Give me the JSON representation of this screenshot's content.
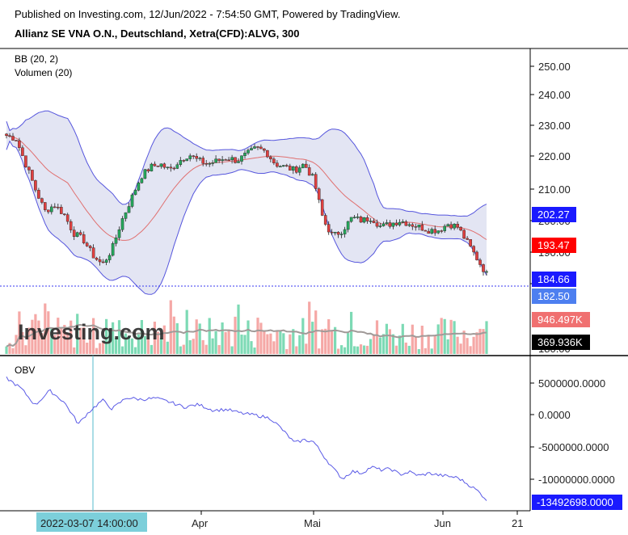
{
  "header": {
    "published": "Published on Investing.com, 12/Jun/2022 - 7:54:50 GMT, Powered by TradingView.",
    "title": "Allianz SE VNA O.N., Deutschland, Xetra(CFD):ALVG, 300"
  },
  "indicators": {
    "bb": "BB (20, 2)",
    "volume": "Volumen (20)",
    "obv": "OBV"
  },
  "watermark": "Investing.com",
  "colors": {
    "up": "#26a65b",
    "down": "#e04040",
    "band_fill": "#e3e5f3",
    "band_line": "#5555dd",
    "basis": "#e07070",
    "obv_line": "#5a5ae6",
    "vol_up": "#7ddab5",
    "vol_down": "#f5a8a6",
    "vol_ma": "#a09a98",
    "badge_blue": "#1a1aff",
    "badge_red": "#ff0000",
    "badge_lightblue": "#4d7ff0",
    "badge_salmon": "#f07070",
    "badge_black": "#000000",
    "crosshair": "#55bbcc",
    "date_badge": "#7ccfda"
  },
  "price_axis": {
    "ticks": [
      "250.00",
      "240.00",
      "230.00",
      "220.00",
      "210.00",
      "200.00",
      "190.00",
      "180.00"
    ]
  },
  "price_badges": {
    "bb_upper": "202.27",
    "bb_basis": "193.47",
    "bb_lower": "184.66",
    "last_price": "182.50"
  },
  "volume_badges": {
    "volume": "946.497K",
    "volume_ma": "369.936K"
  },
  "obv_axis": {
    "ticks": [
      "5000000.0000",
      "0.0000",
      "-5000000.0000",
      "-10000000.0000"
    ],
    "badge": "-13492698.0000"
  },
  "time_axis": {
    "labels": [
      "Apr",
      "Mai",
      "Jun",
      "21"
    ],
    "crosshair_date": "2022-03-07 14:00:00"
  },
  "chart_data": {
    "type": "candlestick",
    "ylim": [
      180,
      252
    ],
    "series": [
      {
        "name": "BB (20, 2)",
        "kind": "bollinger",
        "last_upper": 202.27,
        "last_basis": 193.47,
        "last_lower": 184.66
      },
      {
        "name": "Volumen (20)",
        "kind": "volume",
        "last": 946497,
        "ma_last": 369936
      },
      {
        "name": "OBV",
        "kind": "line",
        "last": -13492698
      }
    ],
    "price_path": [
      [
        0.0,
        227
      ],
      [
        0.02,
        226
      ],
      [
        0.04,
        218
      ],
      [
        0.06,
        210
      ],
      [
        0.08,
        203
      ],
      [
        0.1,
        205
      ],
      [
        0.12,
        202
      ],
      [
        0.14,
        196
      ],
      [
        0.16,
        194
      ],
      [
        0.18,
        189
      ],
      [
        0.2,
        186
      ],
      [
        0.22,
        191
      ],
      [
        0.24,
        200
      ],
      [
        0.26,
        207
      ],
      [
        0.28,
        214
      ],
      [
        0.3,
        217
      ],
      [
        0.32,
        218
      ],
      [
        0.34,
        216
      ],
      [
        0.36,
        219
      ],
      [
        0.38,
        221
      ],
      [
        0.4,
        219
      ],
      [
        0.42,
        218
      ],
      [
        0.44,
        219
      ],
      [
        0.46,
        220
      ],
      [
        0.48,
        219
      ],
      [
        0.5,
        221
      ],
      [
        0.52,
        223
      ],
      [
        0.54,
        222
      ],
      [
        0.56,
        218
      ],
      [
        0.58,
        217
      ],
      [
        0.6,
        216
      ],
      [
        0.62,
        218
      ],
      [
        0.64,
        213
      ],
      [
        0.66,
        200
      ],
      [
        0.68,
        195
      ],
      [
        0.7,
        197
      ],
      [
        0.72,
        201
      ],
      [
        0.74,
        200
      ],
      [
        0.76,
        201
      ],
      [
        0.78,
        198
      ],
      [
        0.8,
        199
      ],
      [
        0.82,
        200
      ],
      [
        0.84,
        199
      ],
      [
        0.86,
        198
      ],
      [
        0.88,
        197
      ],
      [
        0.9,
        197
      ],
      [
        0.92,
        199
      ],
      [
        0.94,
        198
      ],
      [
        0.96,
        193
      ],
      [
        0.98,
        188
      ],
      [
        1.0,
        183
      ]
    ],
    "obv_path": [
      [
        0.0,
        5800000
      ],
      [
        0.03,
        4200000
      ],
      [
        0.06,
        1500000
      ],
      [
        0.09,
        3800000
      ],
      [
        0.12,
        2000000
      ],
      [
        0.15,
        -1500000
      ],
      [
        0.17,
        300000
      ],
      [
        0.2,
        2300000
      ],
      [
        0.22,
        900000
      ],
      [
        0.25,
        2700000
      ],
      [
        0.28,
        2400000
      ],
      [
        0.31,
        2600000
      ],
      [
        0.34,
        2000000
      ],
      [
        0.37,
        1200000
      ],
      [
        0.4,
        1600000
      ],
      [
        0.43,
        700000
      ],
      [
        0.46,
        800000
      ],
      [
        0.49,
        200000
      ],
      [
        0.52,
        -100000
      ],
      [
        0.55,
        -600000
      ],
      [
        0.57,
        -2000000
      ],
      [
        0.6,
        -4500000
      ],
      [
        0.62,
        -4000000
      ],
      [
        0.64,
        -4300000
      ],
      [
        0.66,
        -6500000
      ],
      [
        0.68,
        -8500000
      ],
      [
        0.7,
        -10200000
      ],
      [
        0.72,
        -9000000
      ],
      [
        0.74,
        -9300000
      ],
      [
        0.76,
        -8300000
      ],
      [
        0.78,
        -8800000
      ],
      [
        0.8,
        -8600000
      ],
      [
        0.82,
        -9500000
      ],
      [
        0.84,
        -9100000
      ],
      [
        0.86,
        -9700000
      ],
      [
        0.88,
        -9300000
      ],
      [
        0.9,
        -9600000
      ],
      [
        0.92,
        -9800000
      ],
      [
        0.94,
        -10000000
      ],
      [
        0.96,
        -11000000
      ],
      [
        0.98,
        -12000000
      ],
      [
        1.0,
        -13492698
      ]
    ]
  }
}
